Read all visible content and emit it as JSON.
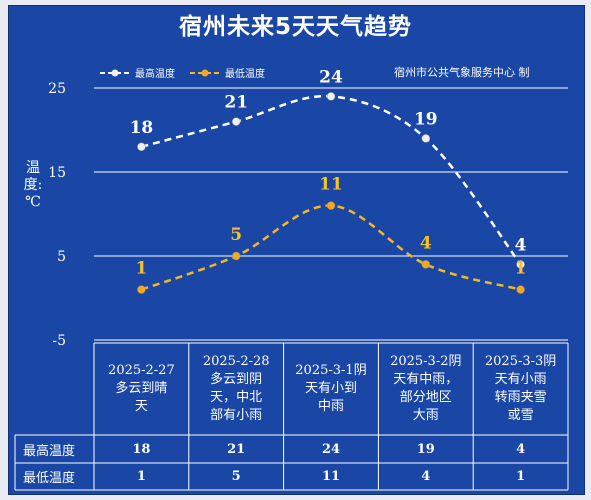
{
  "title": "宿州未来5天天气趋势",
  "source": "宿州市公共气象服务中心 制",
  "ylabel": "温度: ℃",
  "legend": {
    "high": "最高温度",
    "low": "最低温度"
  },
  "colors": {
    "background": "#1a46a6",
    "high": "#ffffff",
    "low": "#f5b81e",
    "grid": "#ffffff"
  },
  "table": {
    "row_labels": [
      "最高温度",
      "最低温度"
    ],
    "columns": [
      {
        "date": "2025-2-27",
        "desc": "多云到晴天"
      },
      {
        "date": "2025-2-28",
        "desc": "多云到阴天，中北部有小雨"
      },
      {
        "date": "2025-3-1",
        "desc": "阴天有小到中雨"
      },
      {
        "date": "2025-3-2",
        "desc": "阴天有中雨，部分地区大雨"
      },
      {
        "date": "2025-3-3",
        "desc": "阴天有小雨转雨夹雪或雪"
      }
    ],
    "header_lines": [
      "2025-2-27\n多云到晴\n天",
      "2025-2-28\n多云到阴\n天，中北\n部有小雨",
      "2025-3-1阴\n天有小到\n中雨",
      "2025-3-2阴\n天有中雨，\n部分地区\n大雨",
      "2025-3-3阴\n天有小雨\n转雨夹雪\n或雪"
    ]
  },
  "chart_data": {
    "type": "line",
    "categories": [
      "2025-2-27",
      "2025-2-28",
      "2025-3-1",
      "2025-3-2",
      "2025-3-3"
    ],
    "series": [
      {
        "name": "最高温度",
        "values": [
          18,
          21,
          24,
          19,
          4
        ]
      },
      {
        "name": "最低温度",
        "values": [
          1,
          5,
          11,
          4,
          1
        ]
      }
    ],
    "ylim": [
      -5,
      25
    ],
    "yticks": [
      -5,
      5,
      15,
      25
    ],
    "ylabel": "温度: ℃",
    "grid": true,
    "legend_position": "top-left"
  }
}
